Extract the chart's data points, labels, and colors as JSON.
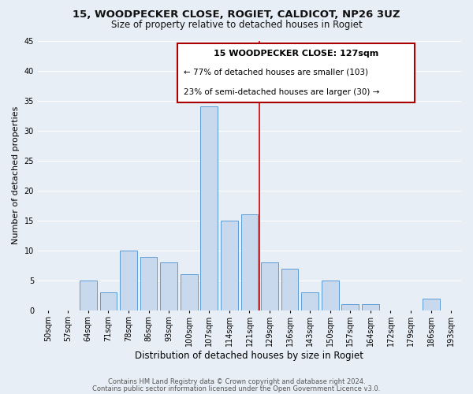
{
  "title1": "15, WOODPECKER CLOSE, ROGIET, CALDICOT, NP26 3UZ",
  "title2": "Size of property relative to detached houses in Rogiet",
  "xlabel": "Distribution of detached houses by size in Rogiet",
  "ylabel": "Number of detached properties",
  "footer1": "Contains HM Land Registry data © Crown copyright and database right 2024.",
  "footer2": "Contains public sector information licensed under the Open Government Licence v3.0.",
  "bin_labels": [
    "50sqm",
    "57sqm",
    "64sqm",
    "71sqm",
    "78sqm",
    "86sqm",
    "93sqm",
    "100sqm",
    "107sqm",
    "114sqm",
    "121sqm",
    "129sqm",
    "136sqm",
    "143sqm",
    "150sqm",
    "157sqm",
    "164sqm",
    "172sqm",
    "179sqm",
    "186sqm",
    "193sqm"
  ],
  "bar_heights": [
    0,
    0,
    5,
    3,
    10,
    9,
    8,
    6,
    34,
    15,
    16,
    8,
    7,
    3,
    5,
    1,
    1,
    0,
    0,
    2,
    0
  ],
  "bar_color": "#c8d9ed",
  "bar_edge_color": "#5b9bd5",
  "vline_color": "#cc0000",
  "bg_color": "#e8eef5",
  "ylim": [
    0,
    45
  ],
  "yticks": [
    0,
    5,
    10,
    15,
    20,
    25,
    30,
    35,
    40,
    45
  ],
  "annotation_title": "15 WOODPECKER CLOSE: 127sqm",
  "annotation_line1": "← 77% of detached houses are smaller (103)",
  "annotation_line2": "23% of semi-detached houses are larger (30) →",
  "annotation_box_color": "#ffffff",
  "annotation_box_edge": "#aa0000",
  "grid_color": "#ffffff",
  "title1_fontsize": 9.5,
  "title2_fontsize": 8.5,
  "xlabel_fontsize": 8.5,
  "ylabel_fontsize": 8,
  "tick_fontsize": 7,
  "ann_title_fontsize": 8,
  "ann_text_fontsize": 7.5,
  "footer_fontsize": 6,
  "footer_color": "#555555"
}
